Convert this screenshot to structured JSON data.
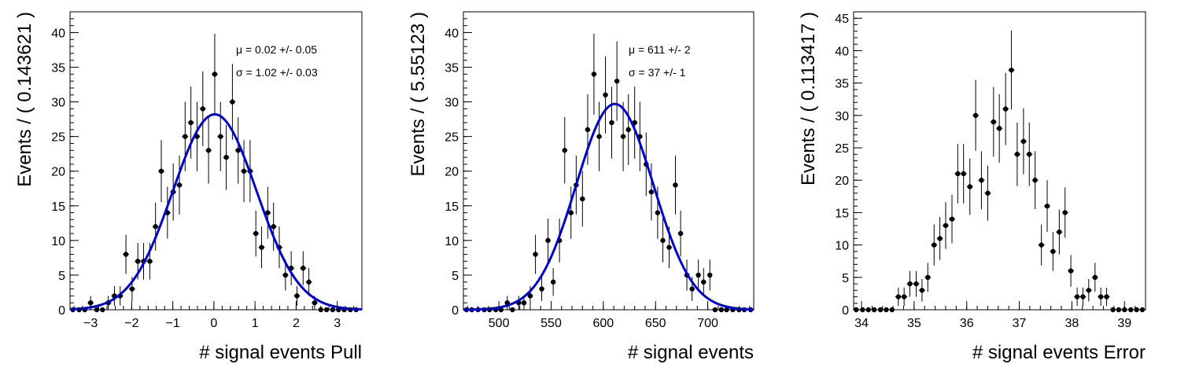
{
  "colors": {
    "fit_curve": "#0000cc",
    "markers": "#000000",
    "frame": "#000000",
    "background": "#ffffff"
  },
  "chart_data": [
    {
      "type": "scatter",
      "title": "",
      "xlabel": "# signal events Pull",
      "ylabel": "Events / ( 0.143621 )",
      "xlim": [
        -3.5,
        3.6
      ],
      "ylim": [
        0,
        43
      ],
      "x_ticks": [
        -3,
        -2,
        -1,
        0,
        1,
        2,
        3
      ],
      "y_ticks": [
        0,
        5,
        10,
        15,
        20,
        25,
        30,
        35,
        40
      ],
      "error_bars": true,
      "fit": {
        "type": "gaussian",
        "mean": 0.02,
        "sigma": 1.02,
        "peak": 28.2,
        "color": "#0000cc"
      },
      "annotations": [
        {
          "symbol": "μ",
          "text": "0.02 +/- 0.05"
        },
        {
          "symbol": "σ",
          "text": "1.02 +/- 0.03"
        }
      ],
      "x": [
        -3.43,
        -3.28,
        -3.14,
        -3.0,
        -2.85,
        -2.71,
        -2.57,
        -2.42,
        -2.28,
        -2.14,
        -1.99,
        -1.85,
        -1.71,
        -1.56,
        -1.42,
        -1.28,
        -1.13,
        -0.99,
        -0.84,
        -0.7,
        -0.56,
        -0.41,
        -0.27,
        -0.13,
        0.02,
        0.16,
        0.3,
        0.45,
        0.59,
        0.73,
        0.88,
        1.02,
        1.16,
        1.31,
        1.45,
        1.59,
        1.74,
        1.88,
        2.02,
        2.17,
        2.31,
        2.45,
        2.6,
        2.74,
        2.89,
        3.03,
        3.17,
        3.32,
        3.46
      ],
      "y": [
        0,
        0,
        0,
        1,
        0,
        0,
        1,
        2,
        2,
        8,
        3,
        7,
        7,
        7,
        12,
        20,
        14,
        17,
        18,
        25,
        27,
        25,
        29,
        23,
        34,
        25,
        22,
        30,
        23,
        20,
        20,
        11,
        9,
        14,
        12,
        9,
        5,
        6,
        2,
        6,
        4,
        1,
        0,
        0,
        0,
        0,
        0,
        0,
        0
      ]
    },
    {
      "type": "scatter",
      "title": "",
      "xlabel": "# signal events",
      "ylabel": "Events / ( 5.55123 )",
      "xlim": [
        466,
        744
      ],
      "ylim": [
        0,
        43
      ],
      "x_ticks": [
        500,
        550,
        600,
        650,
        700
      ],
      "y_ticks": [
        0,
        5,
        10,
        15,
        20,
        25,
        30,
        35,
        40
      ],
      "error_bars": true,
      "fit": {
        "type": "gaussian",
        "mean": 611,
        "sigma": 37,
        "peak": 29.7,
        "color": "#0000cc"
      },
      "annotations": [
        {
          "symbol": "μ",
          "text": "611 +/- 2"
        },
        {
          "symbol": "σ",
          "text": "37 +/- 1"
        }
      ],
      "x": [
        469,
        474,
        480,
        486,
        491,
        497,
        502,
        508,
        513,
        519,
        524,
        530,
        535,
        541,
        547,
        552,
        558,
        563,
        569,
        574,
        580,
        585,
        591,
        596,
        602,
        608,
        613,
        619,
        624,
        630,
        635,
        641,
        646,
        652,
        657,
        663,
        669,
        674,
        680,
        685,
        691,
        696,
        702,
        707,
        713,
        718,
        724,
        730,
        735,
        741
      ],
      "y": [
        0,
        0,
        0,
        0,
        0,
        0,
        0,
        1,
        0,
        1,
        1,
        2,
        8,
        3,
        10,
        4,
        10,
        23,
        14,
        18,
        16,
        26,
        34,
        25,
        31,
        27,
        33,
        25,
        26,
        27,
        25,
        21,
        17,
        14,
        10,
        9,
        18,
        11,
        5,
        3,
        5,
        4,
        5,
        0,
        0,
        0,
        0,
        0,
        0,
        0
      ]
    },
    {
      "type": "scatter",
      "title": "",
      "xlabel": "# signal events Error",
      "ylabel": "Events / ( 0.113417 )",
      "xlim": [
        33.85,
        39.4
      ],
      "ylim": [
        0,
        46
      ],
      "x_ticks": [
        34,
        35,
        36,
        37,
        38,
        39
      ],
      "y_ticks": [
        0,
        5,
        10,
        15,
        20,
        25,
        30,
        35,
        40,
        45
      ],
      "error_bars": true,
      "annotations": [],
      "x": [
        33.9,
        34.02,
        34.13,
        34.24,
        34.36,
        34.47,
        34.58,
        34.7,
        34.81,
        34.92,
        35.04,
        35.15,
        35.26,
        35.38,
        35.49,
        35.6,
        35.72,
        35.83,
        35.94,
        36.06,
        36.17,
        36.28,
        36.4,
        36.51,
        36.62,
        36.74,
        36.85,
        36.96,
        37.08,
        37.19,
        37.3,
        37.42,
        37.53,
        37.64,
        37.76,
        37.87,
        37.98,
        38.1,
        38.21,
        38.32,
        38.44,
        38.55,
        38.66,
        38.78,
        38.89,
        39.0,
        39.12,
        39.23,
        39.34
      ],
      "y": [
        0,
        0,
        0,
        0,
        0,
        0,
        0,
        2,
        2,
        4,
        4,
        3,
        5,
        10,
        11,
        13,
        14,
        21,
        21,
        19,
        30,
        20,
        18,
        29,
        28,
        31,
        37,
        24,
        26,
        24,
        20,
        10,
        16,
        9,
        12,
        15,
        6,
        2,
        2,
        3,
        5,
        2,
        2,
        0,
        0,
        0,
        0,
        0,
        0
      ]
    }
  ]
}
